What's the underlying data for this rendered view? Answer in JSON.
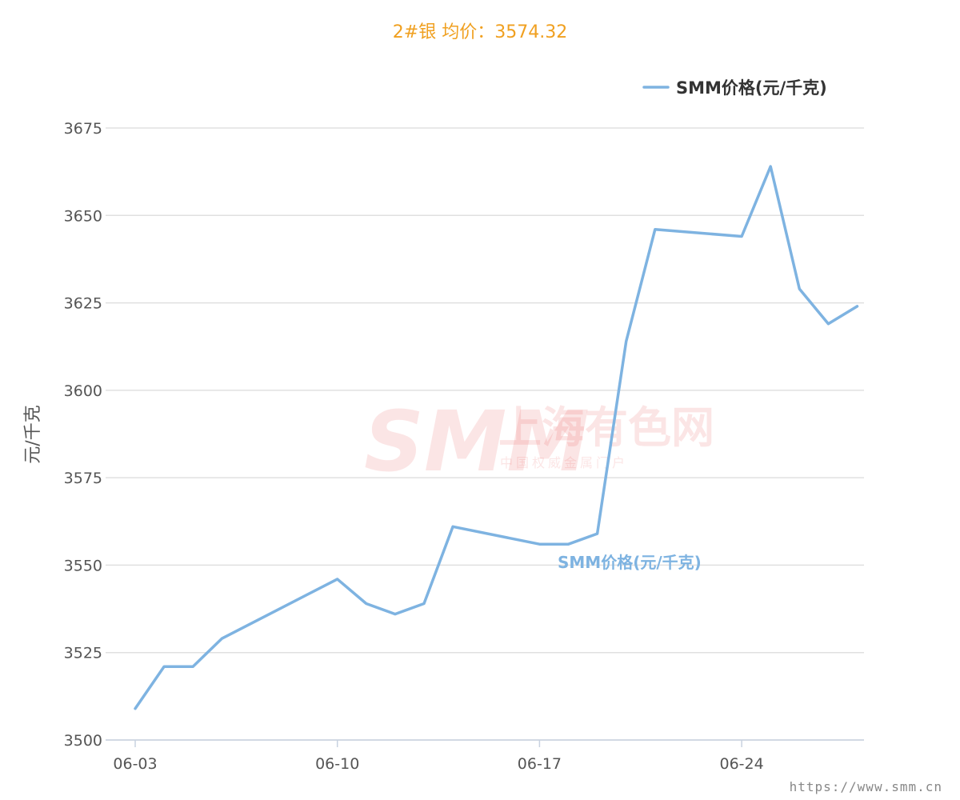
{
  "chart_data": {
    "type": "line",
    "title": "2#银 均价：3574.32",
    "ylabel": "元/千克",
    "xlabel": "",
    "ylim": [
      3500,
      3675
    ],
    "y_ticks": [
      "3500",
      "3525",
      "3550",
      "3575",
      "3600",
      "3625",
      "3650",
      "3675"
    ],
    "x_tick_labels": [
      "06-03",
      "06-10",
      "06-17",
      "06-24"
    ],
    "x_tick_dates": [
      "2024-06-03",
      "2024-06-10",
      "2024-06-17",
      "2024-06-24"
    ],
    "x_range": [
      "2024-06-03",
      "2024-06-28"
    ],
    "grid": true,
    "legend_position": "top-right",
    "series": [
      {
        "name": "SMM价格(元/千克)",
        "color": "#7eb3e1",
        "points": [
          {
            "x": "2024-06-03",
            "y": 3509
          },
          {
            "x": "2024-06-04",
            "y": 3521
          },
          {
            "x": "2024-06-05",
            "y": 3521
          },
          {
            "x": "2024-06-06",
            "y": 3529
          },
          {
            "x": "2024-06-10",
            "y": 3546
          },
          {
            "x": "2024-06-11",
            "y": 3539
          },
          {
            "x": "2024-06-12",
            "y": 3536
          },
          {
            "x": "2024-06-13",
            "y": 3539
          },
          {
            "x": "2024-06-14",
            "y": 3561
          },
          {
            "x": "2024-06-17",
            "y": 3556
          },
          {
            "x": "2024-06-18",
            "y": 3556
          },
          {
            "x": "2024-06-19",
            "y": 3559
          },
          {
            "x": "2024-06-20",
            "y": 3614
          },
          {
            "x": "2024-06-21",
            "y": 3646
          },
          {
            "x": "2024-06-24",
            "y": 3644
          },
          {
            "x": "2024-06-25",
            "y": 3664
          },
          {
            "x": "2024-06-26",
            "y": 3629
          },
          {
            "x": "2024-06-27",
            "y": 3619
          },
          {
            "x": "2024-06-28",
            "y": 3624
          }
        ]
      }
    ]
  },
  "watermark": {
    "logo": "SMM",
    "name": "上海有色网",
    "tagline": "中国权威金属门户"
  },
  "source_url": "https://www.smm.cn"
}
